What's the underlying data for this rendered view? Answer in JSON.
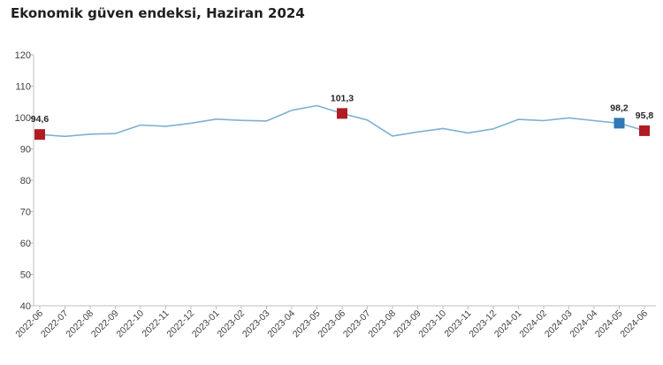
{
  "chart_data": {
    "type": "line",
    "title": "Ekonomik güven endeksi, Haziran 2024",
    "xlabel": "",
    "ylabel": "",
    "ylim": [
      40,
      120
    ],
    "yticks": [
      "40",
      "50",
      "60",
      "70",
      "80",
      "90",
      "100",
      "110",
      "120"
    ],
    "x": [
      "2022-06",
      "2022-07",
      "2022-08",
      "2022-09",
      "2022-10",
      "2022-11",
      "2022-12",
      "2023-01",
      "2023-02",
      "2023-03",
      "2023-04",
      "2023-05",
      "2023-06",
      "2023-07",
      "2023-08",
      "2023-09",
      "2023-10",
      "2023-11",
      "2023-12",
      "2024-01",
      "2024-02",
      "2024-03",
      "2024-04",
      "2024-05",
      "2024-06"
    ],
    "series": [
      {
        "name": "Ekonomik güven endeksi",
        "color": "#7eb0d2",
        "values": [
          94.6,
          94.0,
          94.7,
          94.9,
          97.6,
          97.2,
          98.2,
          99.5,
          99.1,
          98.9,
          102.3,
          103.8,
          101.3,
          99.2,
          94.1,
          95.4,
          96.5,
          95.1,
          96.4,
          99.4,
          99.0,
          99.9,
          99.0,
          98.2,
          95.8
        ]
      }
    ],
    "highlights": [
      {
        "index": 0,
        "label": "94,6",
        "color": "#b01c22"
      },
      {
        "index": 12,
        "label": "101,3",
        "color": "#b01c22"
      },
      {
        "index": 23,
        "label": "98,2",
        "color": "#2f78b5"
      },
      {
        "index": 24,
        "label": "95,8",
        "color": "#b01c22"
      }
    ],
    "grid": false,
    "legend": "none"
  }
}
